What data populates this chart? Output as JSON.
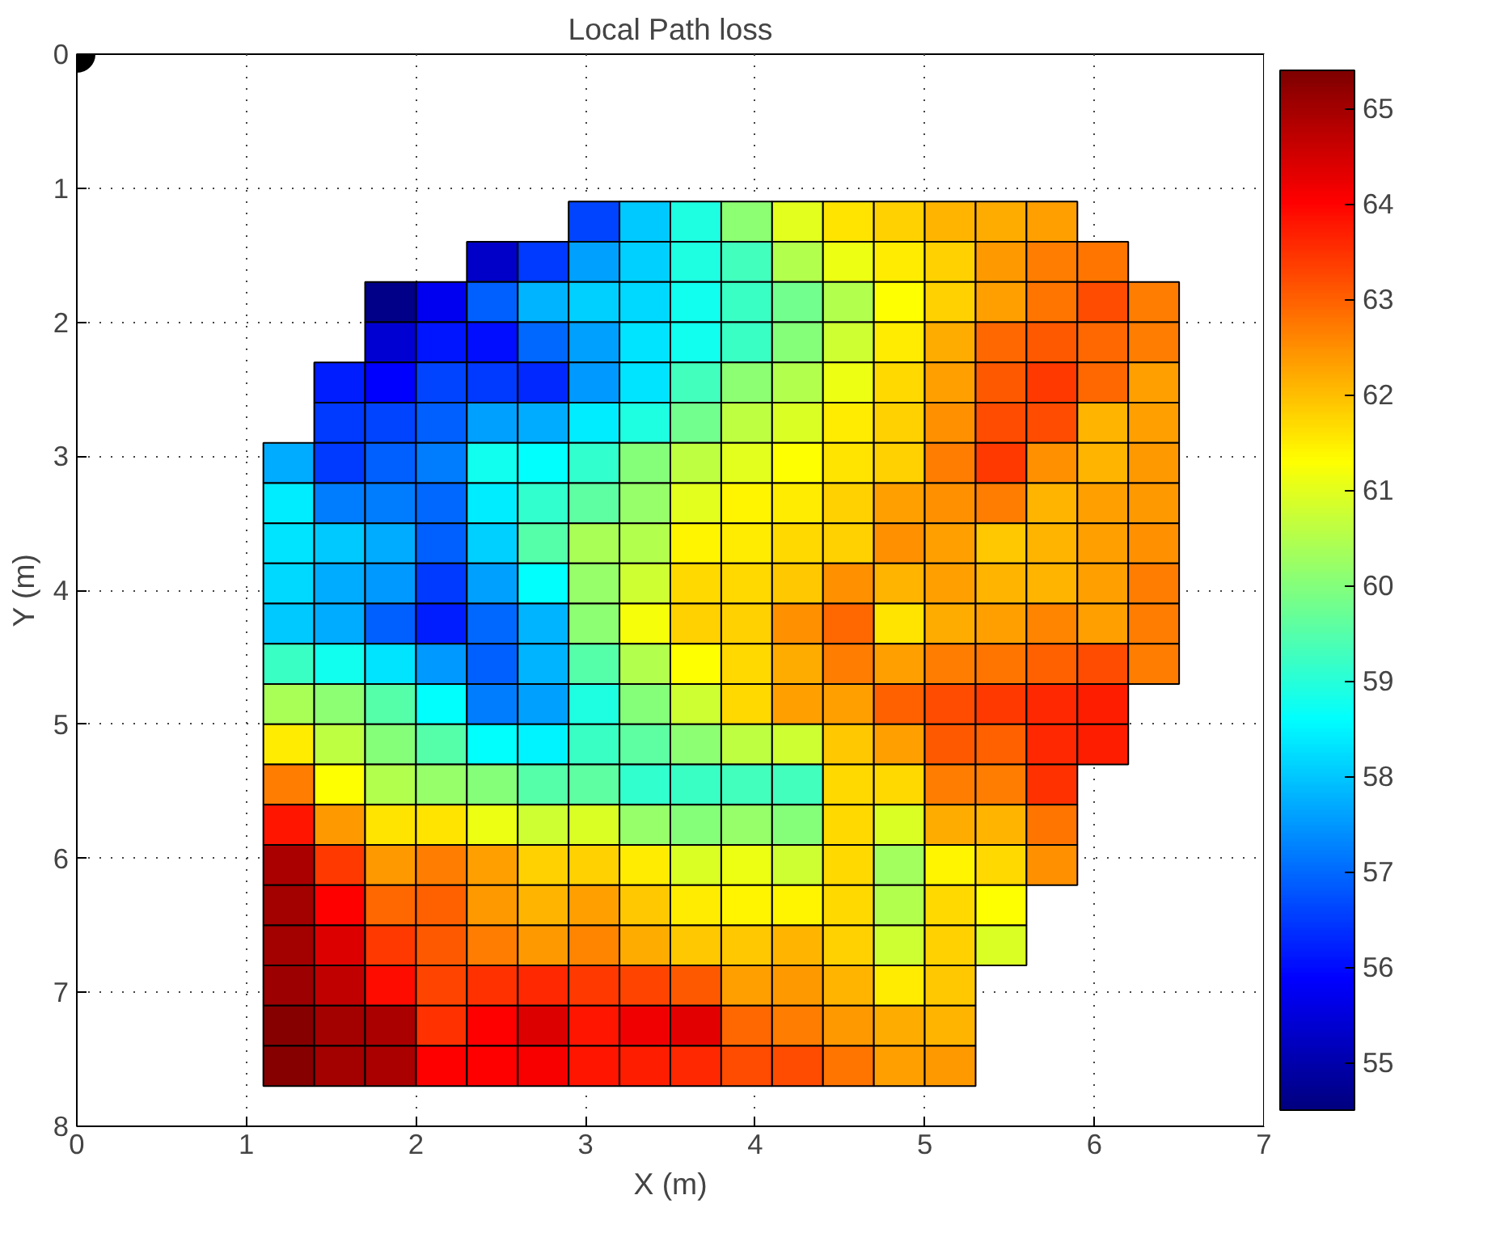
{
  "chart_data": {
    "type": "heatmap",
    "title": "Local Path loss",
    "xlabel": "X (m)",
    "ylabel": "Y (m)",
    "x": [
      1.25,
      1.55,
      1.85,
      2.15,
      2.45,
      2.75,
      3.05,
      3.35,
      3.65,
      3.95,
      4.25,
      4.55,
      4.85,
      5.15,
      5.45,
      5.75,
      6.05,
      6.35
    ],
    "y": [
      1.25,
      1.55,
      1.85,
      2.15,
      2.45,
      2.75,
      3.05,
      3.35,
      3.65,
      3.95,
      4.25,
      4.55,
      4.85,
      5.15,
      5.45,
      5.75,
      6.05,
      6.35,
      6.65,
      6.95,
      7.25,
      7.55
    ],
    "cells": [
      [
        null,
        null,
        null,
        null,
        null,
        null,
        56.6,
        58.0,
        58.9,
        60.1,
        61.0,
        61.6,
        61.8,
        62.1,
        62.2,
        62.3,
        null,
        null
      ],
      [
        null,
        null,
        null,
        null,
        55.3,
        56.5,
        57.6,
        58.1,
        58.9,
        59.3,
        60.5,
        61.1,
        61.5,
        61.8,
        62.4,
        62.7,
        62.8,
        null
      ],
      [
        null,
        null,
        54.6,
        55.7,
        56.9,
        57.8,
        58.1,
        58.2,
        58.8,
        59.2,
        59.8,
        60.5,
        61.3,
        61.8,
        62.3,
        62.8,
        63.2,
        62.7
      ],
      [
        null,
        null,
        55.4,
        56.1,
        56.0,
        57.0,
        57.6,
        58.3,
        58.8,
        59.2,
        60.0,
        60.8,
        61.5,
        62.2,
        62.9,
        63.1,
        62.9,
        62.7
      ],
      [
        null,
        56.2,
        55.9,
        56.6,
        56.5,
        56.3,
        57.5,
        58.3,
        59.3,
        60.1,
        60.5,
        61.1,
        61.7,
        62.3,
        63.1,
        63.4,
        62.9,
        62.3
      ],
      [
        null,
        56.5,
        56.6,
        56.9,
        57.6,
        57.7,
        58.4,
        58.9,
        59.8,
        60.6,
        60.9,
        61.5,
        61.8,
        62.5,
        63.2,
        63.2,
        62.1,
        62.3
      ],
      [
        57.7,
        56.5,
        56.9,
        57.2,
        58.8,
        58.6,
        59.1,
        60.0,
        60.6,
        61.0,
        61.3,
        61.6,
        61.8,
        62.7,
        63.4,
        62.5,
        62.1,
        62.4
      ],
      [
        58.4,
        57.2,
        57.2,
        57.0,
        58.4,
        59.1,
        59.6,
        60.2,
        61.0,
        61.4,
        61.5,
        61.8,
        62.3,
        62.5,
        62.7,
        62.1,
        62.3,
        62.4
      ],
      [
        58.3,
        58.0,
        57.7,
        56.9,
        58.1,
        59.5,
        60.4,
        60.5,
        61.4,
        61.5,
        61.7,
        61.8,
        62.5,
        62.3,
        61.9,
        62.1,
        62.3,
        62.5
      ],
      [
        58.2,
        57.7,
        57.5,
        56.5,
        57.6,
        58.6,
        60.2,
        60.8,
        61.7,
        61.7,
        61.9,
        62.5,
        62.1,
        62.3,
        62.1,
        62.1,
        62.3,
        62.7
      ],
      [
        58.0,
        57.7,
        56.9,
        56.2,
        57.0,
        57.8,
        60.1,
        61.2,
        61.8,
        61.8,
        62.5,
        62.9,
        61.6,
        62.2,
        62.3,
        62.6,
        62.3,
        62.7
      ],
      [
        59.2,
        58.8,
        58.3,
        57.5,
        56.9,
        57.8,
        59.5,
        60.5,
        61.3,
        61.7,
        62.2,
        62.7,
        62.3,
        62.7,
        62.8,
        63.0,
        63.2,
        62.7
      ],
      [
        60.4,
        60.1,
        59.5,
        58.6,
        57.2,
        57.6,
        58.9,
        60.0,
        60.8,
        61.7,
        62.3,
        62.3,
        63.0,
        63.2,
        63.4,
        63.6,
        63.7,
        null
      ],
      [
        61.5,
        60.6,
        60.0,
        59.5,
        58.6,
        58.5,
        59.2,
        59.6,
        60.1,
        60.6,
        60.8,
        61.9,
        62.3,
        63.1,
        63.0,
        63.6,
        63.7,
        null
      ],
      [
        62.7,
        61.3,
        60.5,
        60.2,
        60.0,
        59.5,
        59.6,
        59.1,
        59.2,
        59.3,
        59.3,
        61.7,
        61.7,
        62.7,
        62.7,
        63.5,
        null,
        null
      ],
      [
        63.8,
        62.4,
        61.6,
        61.6,
        61.1,
        60.8,
        60.9,
        60.2,
        60.0,
        60.2,
        60.0,
        61.7,
        60.9,
        62.2,
        62.1,
        62.8,
        null,
        null
      ],
      [
        64.9,
        63.4,
        62.4,
        62.7,
        62.3,
        61.8,
        61.8,
        61.5,
        60.9,
        61.1,
        60.8,
        61.7,
        60.3,
        61.4,
        61.7,
        62.5,
        null,
        null
      ],
      [
        65.0,
        64.0,
        62.9,
        63.0,
        62.4,
        62.1,
        62.3,
        61.9,
        61.5,
        61.4,
        61.4,
        61.7,
        60.5,
        61.7,
        61.3,
        null,
        null,
        null
      ],
      [
        65.0,
        64.4,
        63.4,
        63.1,
        62.7,
        62.4,
        62.6,
        62.2,
        61.9,
        61.9,
        62.1,
        61.8,
        60.8,
        61.8,
        60.9,
        null,
        null,
        null
      ],
      [
        65.1,
        64.7,
        63.9,
        63.3,
        63.5,
        63.6,
        63.4,
        63.3,
        63.1,
        62.3,
        62.4,
        62.1,
        61.5,
        61.9,
        null,
        null,
        null,
        null
      ],
      [
        65.3,
        65.0,
        64.9,
        63.5,
        64.0,
        64.4,
        63.8,
        64.2,
        64.3,
        62.9,
        62.7,
        62.4,
        62.2,
        62.1,
        null,
        null,
        null,
        null
      ],
      [
        65.3,
        65.0,
        64.9,
        64.0,
        64.0,
        64.1,
        63.8,
        63.7,
        63.6,
        63.2,
        63.2,
        62.8,
        62.3,
        62.4,
        null,
        null,
        null,
        null
      ]
    ],
    "clim": [
      54.5,
      65.4
    ],
    "cticks": [
      55,
      56,
      57,
      58,
      59,
      60,
      61,
      62,
      63,
      64,
      65
    ],
    "xlim": [
      0,
      7
    ],
    "ylim": [
      8,
      0
    ],
    "xticks": [
      0,
      1,
      2,
      3,
      4,
      5,
      6,
      7
    ],
    "yticks": [
      0,
      1,
      2,
      3,
      4,
      5,
      6,
      7,
      8
    ],
    "grid": true,
    "series": [
      {
        "type": "scatter",
        "color": "#000000",
        "x": [
          0
        ],
        "values": [
          0
        ],
        "marker": "circle"
      }
    ]
  }
}
